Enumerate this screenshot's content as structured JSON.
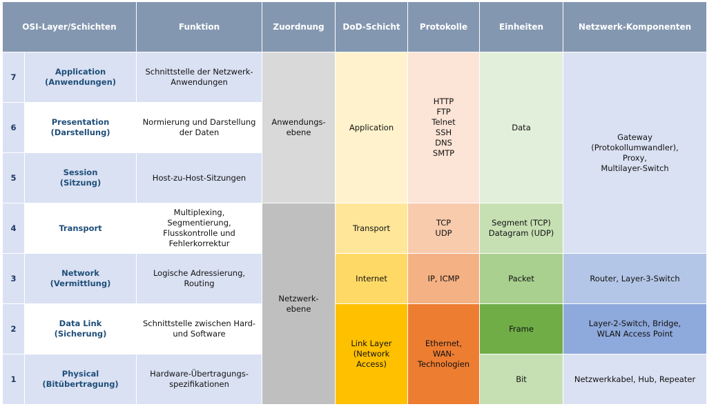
{
  "headers": [
    "OSI-Layer/Schichten",
    "Funktion",
    "Zuordnung",
    "DoD-Schicht",
    "Protokolle",
    "Einheiten",
    "Netzwerk-Komponenten"
  ],
  "rows": [
    {
      "num": "7",
      "layer": "Application\n(Anwendungen)",
      "function": "Schnittstelle der Netzwerk-\nAnwendungen"
    },
    {
      "num": "6",
      "layer": "Presentation\n(Darstellung)",
      "function": "Normierung und Darstellung\nder Daten"
    },
    {
      "num": "5",
      "layer": "Session\n(Sitzung)",
      "function": "Host-zu-Host-Sitzungen"
    },
    {
      "num": "4",
      "layer": "Transport",
      "function": "Multiplexing,\nSegmentierung,\nFlusskontrolle und\nFehlerkorrektur"
    },
    {
      "num": "3",
      "layer": "Network\n(Vermittlung)",
      "function": "Logische Adressierung,\nRouting"
    },
    {
      "num": "2",
      "layer": "Data Link\n(Sicherung)",
      "function": "Schnittstelle zwischen Hard-\nund Software"
    },
    {
      "num": "1",
      "layer": "Physical\n(Bitübertragung)",
      "function": "Hardware-Übertragungs-\nspezifikationen"
    }
  ],
  "zuordnung": {
    "anwendung": "Anwendungs-\nebene",
    "netzwerk": "Netzwerk-\nebene"
  },
  "dod": {
    "application": "Application",
    "transport": "Transport",
    "internet": "Internet",
    "link": "Link Layer\n(Network\nAccess)"
  },
  "protokolle": {
    "application": "HTTP\nFTP\nTelnet\nSSH\nDNS\nSMTP",
    "transport": "TCP\nUDP",
    "internet": "IP, ICMP",
    "link": "Ethernet,\nWAN-\nTechnologien"
  },
  "einheiten": {
    "data": "Data",
    "segment": "Segment (TCP)\nDatagram (UDP)",
    "packet": "Packet",
    "frame": "Frame",
    "bit": "Bit"
  },
  "komponenten": {
    "gateway": "Gateway\n(Protokollumwandler),\nProxy,\nMultilayer-Switch",
    "router": "Router, Layer-3-Switch",
    "layer2": "Layer-2-Switch, Bridge,\nWLAN Access Point",
    "kabel": "Netzwerkkabel, Hub, Repeater"
  }
}
